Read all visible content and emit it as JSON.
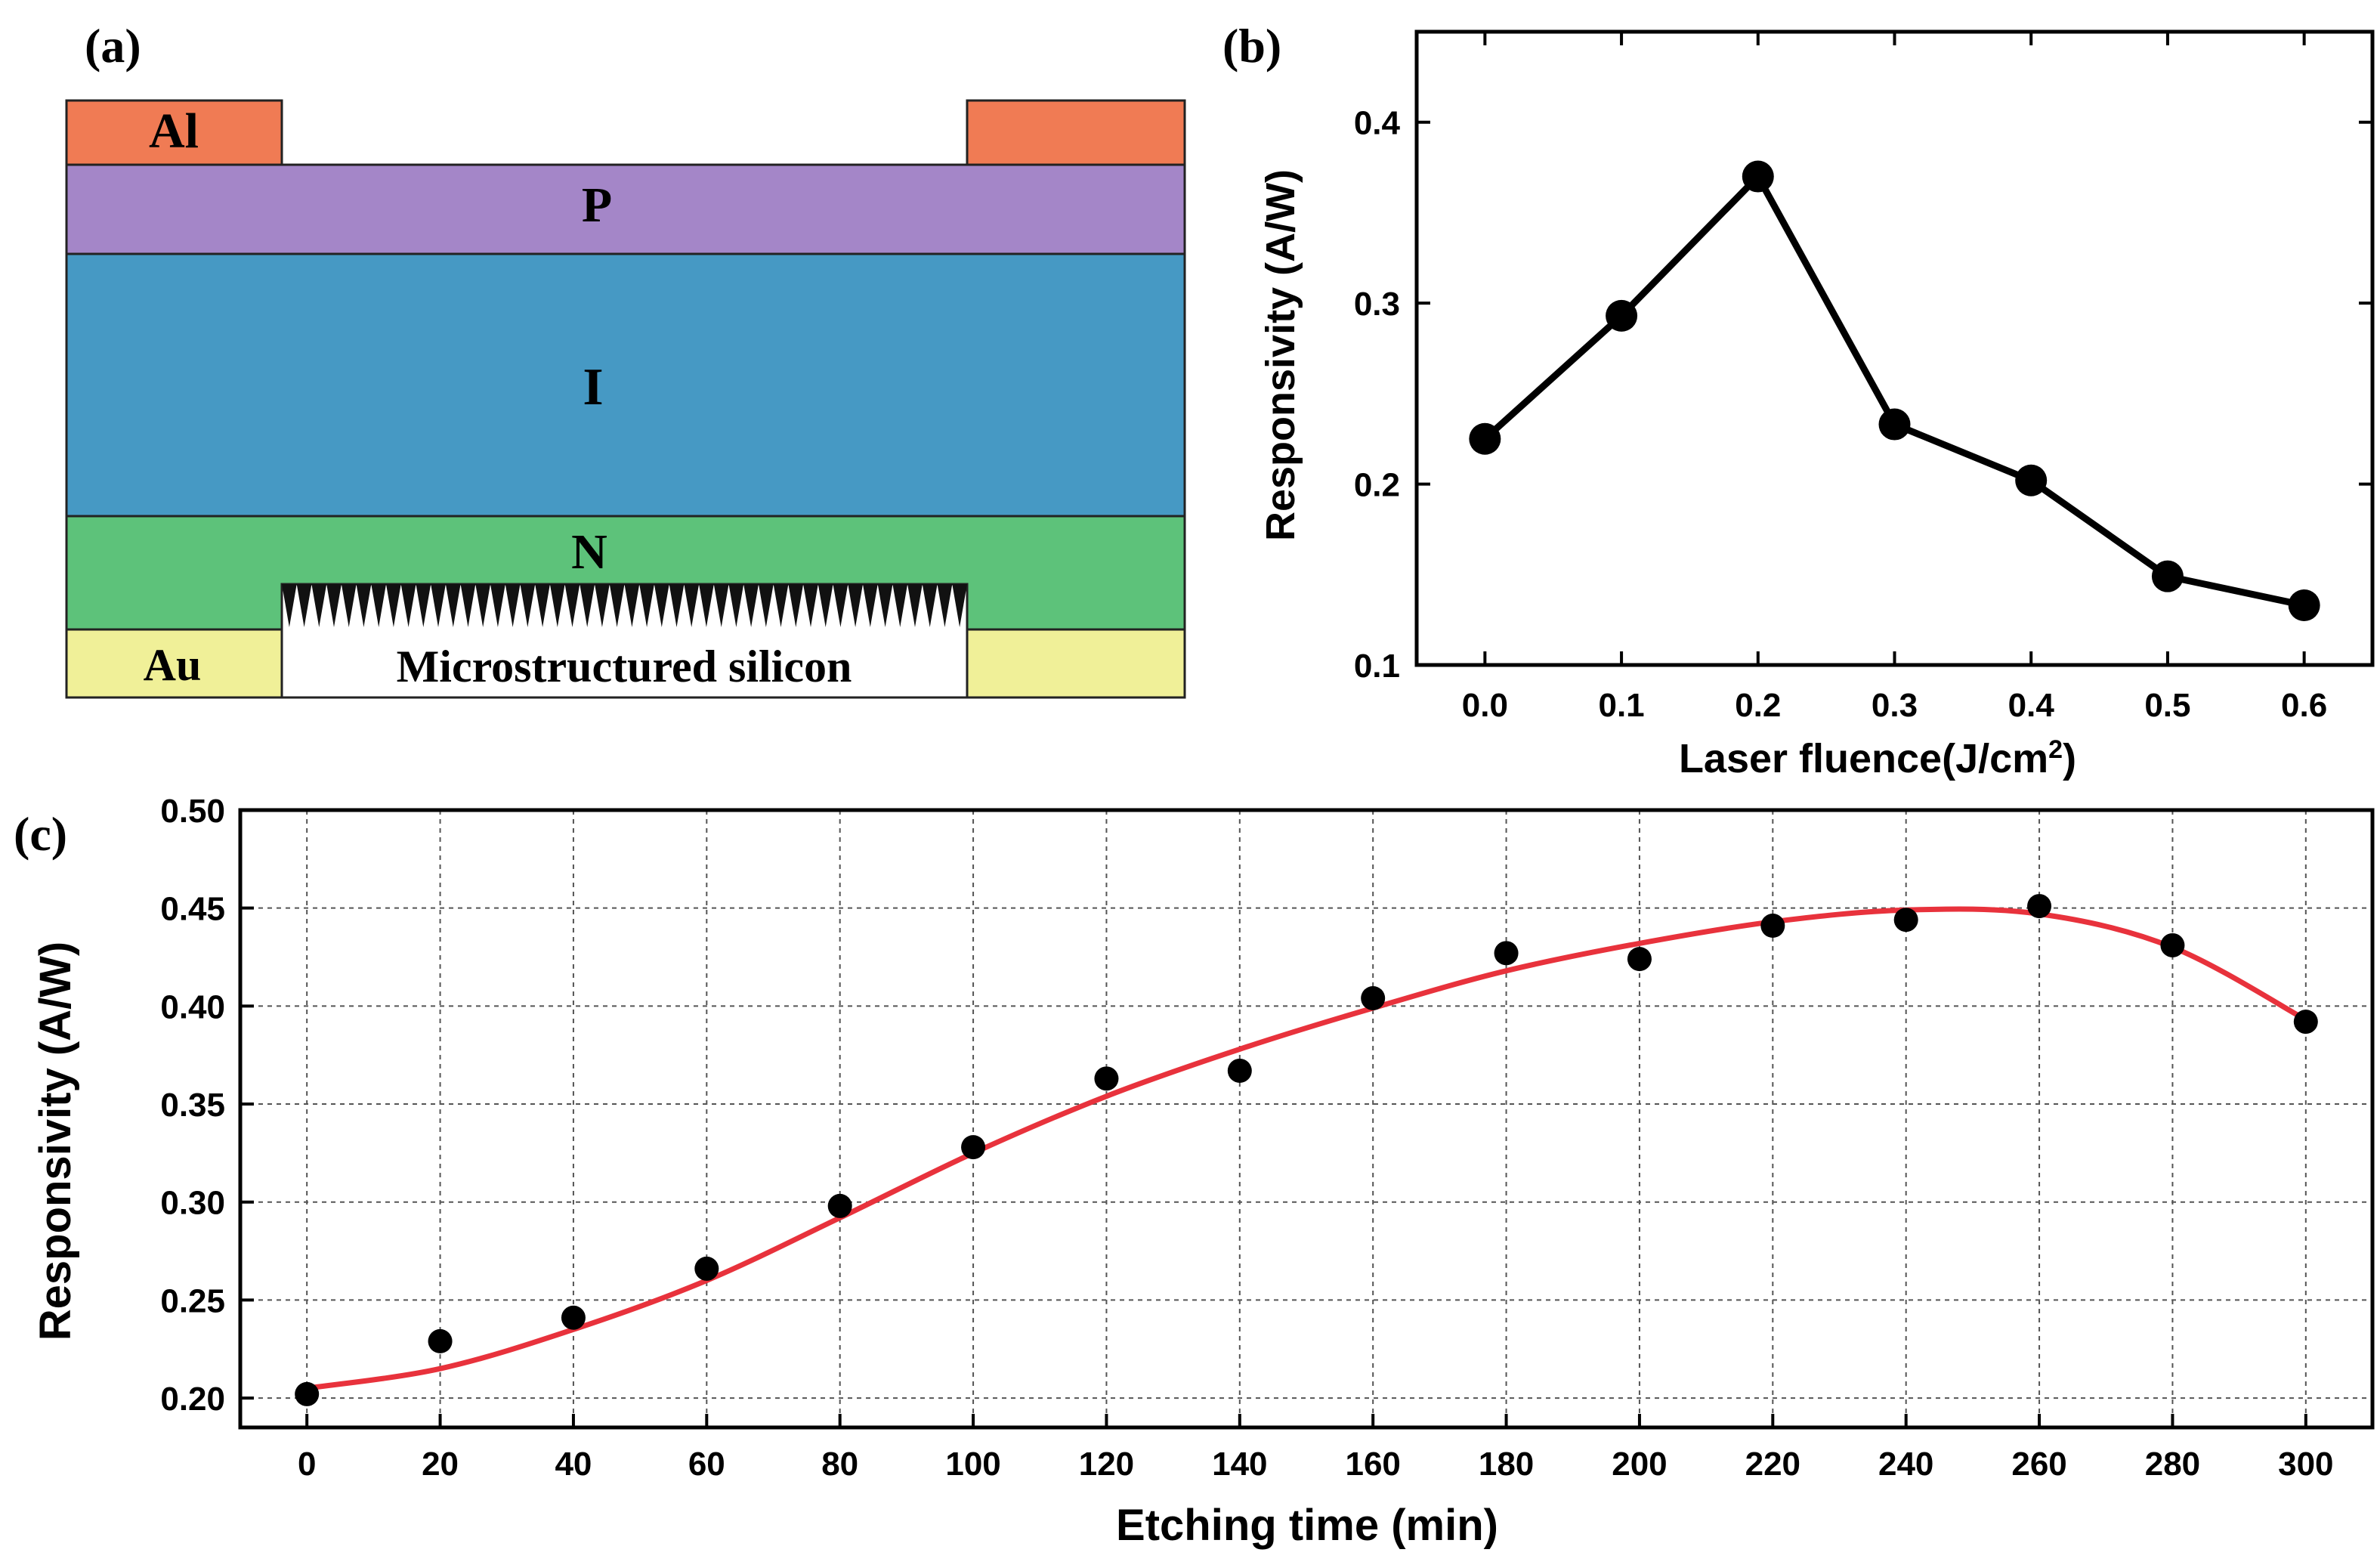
{
  "panels": {
    "a": {
      "label": "(a)"
    },
    "b": {
      "label": "(b)"
    },
    "c": {
      "label": "(c)"
    }
  },
  "diagram": {
    "layers": {
      "al": "Al",
      "p": "P",
      "i": "I",
      "n": "N",
      "au": "Au",
      "micro": "Microstructured silicon"
    },
    "colors": {
      "al": "#f07b54",
      "p": "#a486c8",
      "i": "#4699c4",
      "n": "#5dc27a",
      "au": "#f0f098",
      "micro_bg": "#ffffff",
      "spikes": "#111111"
    }
  },
  "chart_data": [
    {
      "type": "line",
      "xlabel": "Laser fluence(J/cm",
      "xlabel_sup": "2",
      "xlabel_end": ")",
      "ylabel": "Responsivity (A/W)",
      "xlim": [
        -0.05,
        0.65
      ],
      "ylim": [
        0.1,
        0.45
      ],
      "xticks": [
        "0.0",
        "0.1",
        "0.2",
        "0.3",
        "0.4",
        "0.5",
        "0.6"
      ],
      "yticks": [
        "0.1",
        "0.2",
        "0.3",
        "0.4"
      ],
      "x": [
        0.0,
        0.1,
        0.2,
        0.3,
        0.4,
        0.5,
        0.6
      ],
      "y": [
        0.225,
        0.293,
        0.37,
        0.233,
        0.202,
        0.149,
        0.133
      ],
      "grid": false,
      "marker_color": "#000000",
      "line_color": "#000000"
    },
    {
      "type": "scatter",
      "xlabel": "Etching time (min)",
      "ylabel": "Responsivity (A/W)",
      "xlim": [
        -10,
        310
      ],
      "ylim": [
        0.185,
        0.5
      ],
      "xticks": [
        "0",
        "20",
        "40",
        "60",
        "80",
        "100",
        "120",
        "140",
        "160",
        "180",
        "200",
        "220",
        "240",
        "260",
        "280",
        "300"
      ],
      "yticks": [
        "0.20",
        "0.25",
        "0.30",
        "0.35",
        "0.40",
        "0.45",
        "0.50"
      ],
      "x": [
        0,
        20,
        40,
        60,
        80,
        100,
        120,
        140,
        160,
        180,
        200,
        220,
        240,
        260,
        280,
        300
      ],
      "y": [
        0.202,
        0.229,
        0.241,
        0.266,
        0.298,
        0.328,
        0.363,
        0.367,
        0.404,
        0.427,
        0.424,
        0.441,
        0.444,
        0.451,
        0.431,
        0.392
      ],
      "fit": {
        "x": [
          0,
          20,
          40,
          60,
          80,
          100,
          120,
          140,
          160,
          180,
          200,
          220,
          240,
          260,
          280,
          300
        ],
        "y": [
          0.205,
          0.215,
          0.235,
          0.26,
          0.292,
          0.325,
          0.354,
          0.378,
          0.399,
          0.418,
          0.432,
          0.443,
          0.449,
          0.447,
          0.43,
          0.393
        ]
      },
      "grid": true,
      "marker_color": "#000000",
      "fit_color": "#e8323c"
    }
  ]
}
